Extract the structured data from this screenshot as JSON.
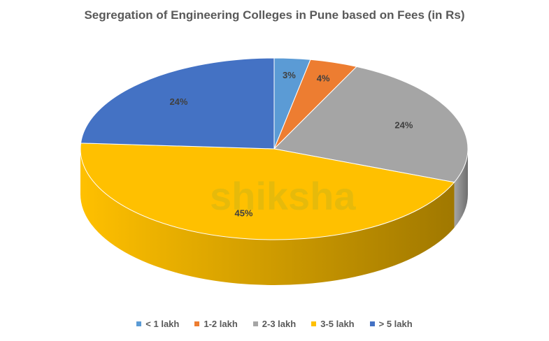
{
  "chart_data": {
    "type": "pie",
    "style": "3d",
    "title": "Segregation of Engineering Colleges in Pune based on Fees (in Rs)",
    "categories": [
      "< 1 lakh",
      "1-2 lakh",
      "2-3 lakh",
      "3-5 lakh",
      "> 5 lakh"
    ],
    "values": [
      3,
      4,
      24,
      45,
      24
    ],
    "data_labels": [
      "3%",
      "4%",
      "24%",
      "45%",
      "24%"
    ],
    "colors": [
      "#5B9BD5",
      "#ED7D31",
      "#A5A5A5",
      "#FFC000",
      "#4472C4"
    ],
    "side_colors": [
      "#3a6f9e",
      "#a8561f",
      "#6e6e6e",
      "#a07800",
      "#2e5090"
    ],
    "legend_position": "bottom",
    "start_angle": "12 o'clock, clockwise"
  },
  "watermark": "shiksha"
}
